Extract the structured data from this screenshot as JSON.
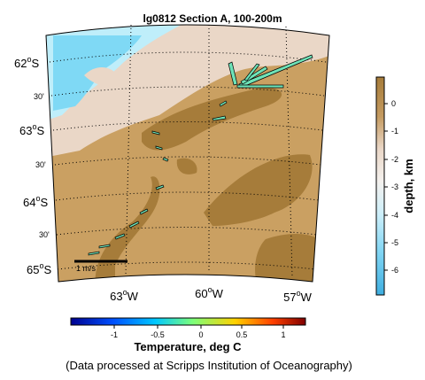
{
  "figure": {
    "title": "lg0812 Section A, 100-200m",
    "footer": "(Data processed at Scripps Institution of Oceanography)"
  },
  "map": {
    "lat_labels": [
      {
        "deg": "62",
        "unit": "o",
        "hem": "S",
        "text": ""
      },
      {
        "deg": "",
        "unit": "",
        "hem": "",
        "text": "30'"
      },
      {
        "deg": "63",
        "unit": "o",
        "hem": "S",
        "text": ""
      },
      {
        "deg": "",
        "unit": "",
        "hem": "",
        "text": "30'"
      },
      {
        "deg": "64",
        "unit": "o",
        "hem": "S",
        "text": ""
      },
      {
        "deg": "",
        "unit": "",
        "hem": "",
        "text": "30'"
      },
      {
        "deg": "65",
        "unit": "o",
        "hem": "S",
        "text": ""
      }
    ],
    "lon_labels": [
      {
        "deg": "63",
        "unit": "o",
        "hem": "W"
      },
      {
        "deg": "60",
        "unit": "o",
        "hem": "W"
      },
      {
        "deg": "57",
        "unit": "o",
        "hem": "W"
      }
    ],
    "scale_label": "1 m/s",
    "colors": {
      "land": "#a67c3a",
      "shelf": "#caa062",
      "mid": "#ead7c7",
      "deep": "#bfeefa",
      "deeper": "#7fd9f5",
      "vector_fill": "#6ee3b8"
    }
  },
  "depth_bar": {
    "label": "depth, km",
    "ticks": [
      "0",
      "-1",
      "-2",
      "-3",
      "-4",
      "-5",
      "-6"
    ],
    "colors": [
      "#a67c3a",
      "#c49a60",
      "#ead7c7",
      "#f4f1ee",
      "#cdeffa",
      "#82d6f4",
      "#3eaee0"
    ]
  },
  "temp_bar": {
    "label": "Temperature, deg C",
    "ticks": [
      "-1",
      "-0.5",
      "0",
      "0.5",
      "1"
    ],
    "colors": [
      "#00008f",
      "#0050ff",
      "#00c8ff",
      "#7dff7a",
      "#ffd200",
      "#ff4000",
      "#800000"
    ]
  }
}
